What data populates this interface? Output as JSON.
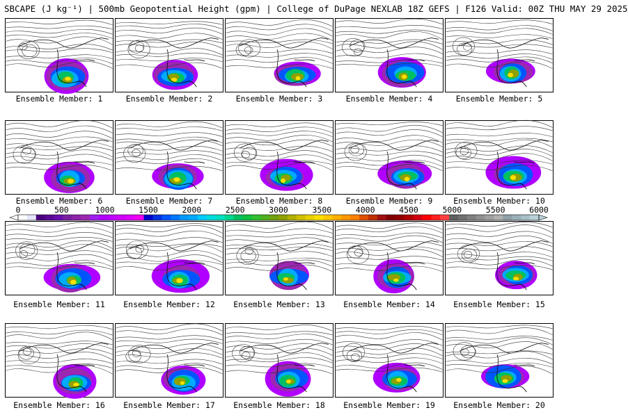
{
  "title": "SBCAPE (J kg⁻¹) | 500mb Geopotential Height (gpm) | College of DuPage NEXLAB 18Z GEFS | F126 Valid: 00Z THU MAY 29 2025",
  "panels": [
    "Ensemble Member: 1",
    "Ensemble Member: 2",
    "Ensemble Member: 3",
    "Ensemble Member: 4",
    "Ensemble Member: 5",
    "Ensemble Member: 6",
    "Ensemble Member: 7",
    "Ensemble Member: 8",
    "Ensemble Member: 9",
    "Ensemble Member: 10",
    "Ensemble Member: 11",
    "Ensemble Member: 12",
    "Ensemble Member: 13",
    "Ensemble Member: 14",
    "Ensemble Member: 15",
    "Ensemble Member: 16",
    "Ensemble Member: 17",
    "Ensemble Member: 18",
    "Ensemble Member: 19",
    "Ensemble Member: 20"
  ],
  "colorbar": {
    "ticks": [
      "0",
      "500",
      "1000",
      "1500",
      "2000",
      "2500",
      "3000",
      "3500",
      "4000",
      "4500",
      "5000",
      "5500",
      "6000"
    ],
    "min": 0,
    "max": 6000,
    "step": 125,
    "colors": [
      "#ffffff",
      "#e6e6ff",
      "#4b0082",
      "#5a0a96",
      "#6a0dad",
      "#7b1fa2",
      "#8e24aa",
      "#9c27b0",
      "#a020f0",
      "#b000ff",
      "#c000ff",
      "#d000ff",
      "#e000ff",
      "#f000f0",
      "#0000cd",
      "#0030e0",
      "#0055ff",
      "#0077ff",
      "#0099ff",
      "#00aaff",
      "#00ccff",
      "#00dddd",
      "#00e0c0",
      "#00d890",
      "#00c060",
      "#10c040",
      "#30c030",
      "#50b020",
      "#70a010",
      "#90a000",
      "#b0b000",
      "#d0c000",
      "#e8d000",
      "#ffe000",
      "#ffc800",
      "#ffb000",
      "#ff9800",
      "#ff8000",
      "#e05000",
      "#c03000",
      "#a01010",
      "#800000",
      "#900000",
      "#b00000",
      "#d00010",
      "#ff0000",
      "#ff2020",
      "#ff4040",
      "#606060",
      "#707070",
      "#808080",
      "#909090",
      "#a0a0a0",
      "#b0b0b0",
      "#8fa0a8",
      "#9ab0b8",
      "#a8c0c8",
      "#b8d0d8"
    ]
  }
}
